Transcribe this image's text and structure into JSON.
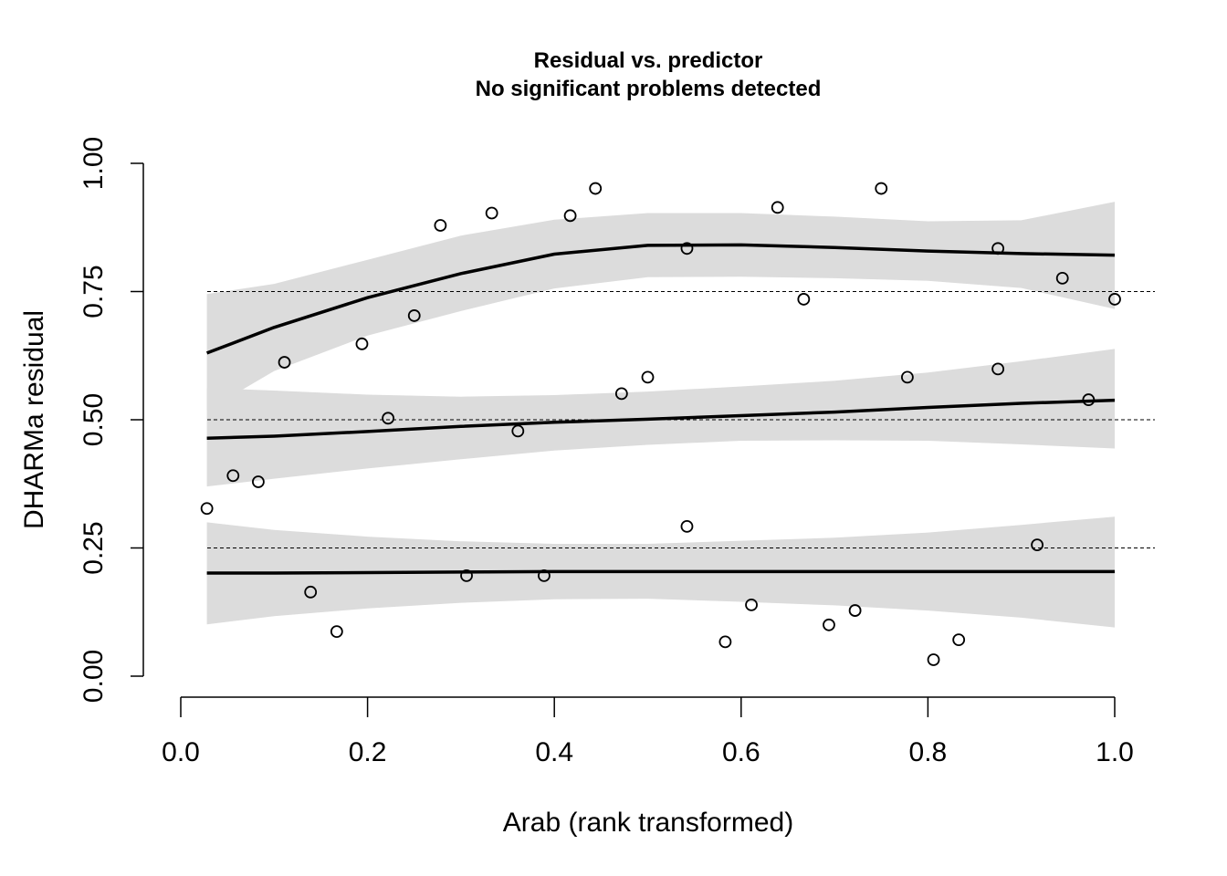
{
  "chart_data": {
    "type": "scatter",
    "title": "Residual vs. predictor",
    "subtitle": "No significant problems detected",
    "xlabel": "Arab (rank transformed)",
    "ylabel": "DHARMa residual",
    "xlim": [
      0.0,
      1.0
    ],
    "ylim": [
      0.0,
      1.0
    ],
    "x_ticks": [
      "0.0",
      "0.2",
      "0.4",
      "0.6",
      "0.8",
      "1.0"
    ],
    "y_ticks": [
      "0.00",
      "0.25",
      "0.50",
      "0.75",
      "1.00"
    ],
    "reference_lines": [
      0.25,
      0.5,
      0.75
    ],
    "points": [
      {
        "x": 0.028,
        "y": 0.327
      },
      {
        "x": 0.056,
        "y": 0.391
      },
      {
        "x": 0.083,
        "y": 0.379
      },
      {
        "x": 0.111,
        "y": 0.612
      },
      {
        "x": 0.139,
        "y": 0.164
      },
      {
        "x": 0.167,
        "y": 0.087
      },
      {
        "x": 0.194,
        "y": 0.648
      },
      {
        "x": 0.222,
        "y": 0.503
      },
      {
        "x": 0.25,
        "y": 0.703
      },
      {
        "x": 0.278,
        "y": 0.879
      },
      {
        "x": 0.306,
        "y": 0.196
      },
      {
        "x": 0.333,
        "y": 0.903
      },
      {
        "x": 0.361,
        "y": 0.478
      },
      {
        "x": 0.389,
        "y": 0.196
      },
      {
        "x": 0.417,
        "y": 0.898
      },
      {
        "x": 0.444,
        "y": 0.951
      },
      {
        "x": 0.472,
        "y": 0.551
      },
      {
        "x": 0.5,
        "y": 0.583
      },
      {
        "x": 0.542,
        "y": 0.292
      },
      {
        "x": 0.542,
        "y": 0.834
      },
      {
        "x": 0.583,
        "y": 0.067
      },
      {
        "x": 0.611,
        "y": 0.139
      },
      {
        "x": 0.639,
        "y": 0.914
      },
      {
        "x": 0.667,
        "y": 0.735
      },
      {
        "x": 0.694,
        "y": 0.1
      },
      {
        "x": 0.722,
        "y": 0.128
      },
      {
        "x": 0.75,
        "y": 0.951
      },
      {
        "x": 0.778,
        "y": 0.583
      },
      {
        "x": 0.806,
        "y": 0.032
      },
      {
        "x": 0.833,
        "y": 0.071
      },
      {
        "x": 0.875,
        "y": 0.834
      },
      {
        "x": 0.875,
        "y": 0.599
      },
      {
        "x": 0.917,
        "y": 0.256
      },
      {
        "x": 0.944,
        "y": 0.776
      },
      {
        "x": 0.972,
        "y": 0.539
      },
      {
        "x": 1.0,
        "y": 0.735
      }
    ],
    "quantile_curves": [
      {
        "quantile": 0.25,
        "fit": [
          [
            0.028,
            0.201
          ],
          [
            0.1,
            0.201
          ],
          [
            0.2,
            0.202
          ],
          [
            0.3,
            0.203
          ],
          [
            0.4,
            0.204
          ],
          [
            0.5,
            0.204
          ],
          [
            0.6,
            0.204
          ],
          [
            0.7,
            0.204
          ],
          [
            0.8,
            0.204
          ],
          [
            0.9,
            0.204
          ],
          [
            1.0,
            0.204
          ]
        ],
        "band_upper": [
          [
            0.028,
            0.3
          ],
          [
            0.1,
            0.285
          ],
          [
            0.2,
            0.272
          ],
          [
            0.3,
            0.263
          ],
          [
            0.4,
            0.258
          ],
          [
            0.5,
            0.258
          ],
          [
            0.6,
            0.264
          ],
          [
            0.7,
            0.27
          ],
          [
            0.8,
            0.28
          ],
          [
            0.9,
            0.295
          ],
          [
            1.0,
            0.311
          ]
        ],
        "band_lower": [
          [
            0.028,
            0.101
          ],
          [
            0.1,
            0.117
          ],
          [
            0.2,
            0.132
          ],
          [
            0.3,
            0.143
          ],
          [
            0.4,
            0.15
          ],
          [
            0.5,
            0.151
          ],
          [
            0.6,
            0.145
          ],
          [
            0.7,
            0.138
          ],
          [
            0.8,
            0.128
          ],
          [
            0.9,
            0.114
          ],
          [
            1.0,
            0.095
          ]
        ]
      },
      {
        "quantile": 0.5,
        "fit": [
          [
            0.028,
            0.464
          ],
          [
            0.1,
            0.468
          ],
          [
            0.2,
            0.477
          ],
          [
            0.3,
            0.487
          ],
          [
            0.4,
            0.495
          ],
          [
            0.5,
            0.501
          ],
          [
            0.6,
            0.508
          ],
          [
            0.7,
            0.515
          ],
          [
            0.8,
            0.524
          ],
          [
            0.9,
            0.532
          ],
          [
            1.0,
            0.538
          ]
        ],
        "band_upper": [
          [
            0.028,
            0.562
          ],
          [
            0.1,
            0.557
          ],
          [
            0.2,
            0.549
          ],
          [
            0.3,
            0.545
          ],
          [
            0.4,
            0.548
          ],
          [
            0.5,
            0.555
          ],
          [
            0.6,
            0.565
          ],
          [
            0.7,
            0.576
          ],
          [
            0.8,
            0.592
          ],
          [
            0.9,
            0.614
          ],
          [
            1.0,
            0.638
          ]
        ],
        "band_lower": [
          [
            0.028,
            0.37
          ],
          [
            0.1,
            0.385
          ],
          [
            0.2,
            0.405
          ],
          [
            0.3,
            0.423
          ],
          [
            0.4,
            0.44
          ],
          [
            0.5,
            0.451
          ],
          [
            0.6,
            0.459
          ],
          [
            0.7,
            0.46
          ],
          [
            0.8,
            0.459
          ],
          [
            0.9,
            0.452
          ],
          [
            1.0,
            0.444
          ]
        ]
      },
      {
        "quantile": 0.75,
        "fit": [
          [
            0.028,
            0.63
          ],
          [
            0.1,
            0.68
          ],
          [
            0.2,
            0.738
          ],
          [
            0.3,
            0.785
          ],
          [
            0.4,
            0.823
          ],
          [
            0.5,
            0.84
          ],
          [
            0.6,
            0.841
          ],
          [
            0.7,
            0.836
          ],
          [
            0.8,
            0.829
          ],
          [
            0.9,
            0.824
          ],
          [
            1.0,
            0.821
          ]
        ],
        "band_upper": [
          [
            0.028,
            0.745
          ],
          [
            0.1,
            0.765
          ],
          [
            0.2,
            0.812
          ],
          [
            0.3,
            0.859
          ],
          [
            0.4,
            0.89
          ],
          [
            0.5,
            0.903
          ],
          [
            0.6,
            0.903
          ],
          [
            0.7,
            0.896
          ],
          [
            0.8,
            0.887
          ],
          [
            0.9,
            0.889
          ],
          [
            1.0,
            0.925
          ]
        ],
        "band_lower": [
          [
            0.028,
            0.518
          ],
          [
            0.1,
            0.595
          ],
          [
            0.2,
            0.664
          ],
          [
            0.3,
            0.712
          ],
          [
            0.4,
            0.756
          ],
          [
            0.5,
            0.778
          ],
          [
            0.6,
            0.779
          ],
          [
            0.7,
            0.776
          ],
          [
            0.8,
            0.771
          ],
          [
            0.9,
            0.757
          ],
          [
            1.0,
            0.716
          ]
        ]
      }
    ],
    "grid": false,
    "legend": "none",
    "colors": {
      "band": "#dcdcdc",
      "line": "#000000",
      "point": "#000000",
      "reference_line": "#000000"
    }
  }
}
